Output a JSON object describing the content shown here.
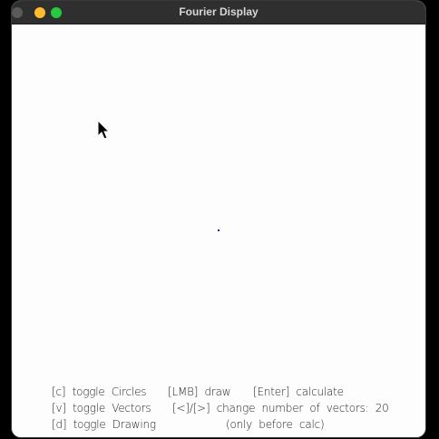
{
  "window": {
    "title": "Fourier Display"
  },
  "help": {
    "toggle_circles": "[c]  toggle  Circles",
    "lmb_draw": "[LMB]  draw",
    "enter_calculate": "[Enter]  calculate",
    "toggle_vectors": "[v]  toggle  Vectors",
    "change_vectors": "[<]/[>]  change  number  of  vectors:  20",
    "toggle_drawing": "[d]  toggle  Drawing",
    "only_before_calc": "(only  before  calc)"
  },
  "colors": {
    "titlebar": "#2f2f2f",
    "canvas": "#fdfdfd",
    "dot": "#2424a8",
    "minimize": "#febc2e",
    "maximize": "#28c840"
  }
}
